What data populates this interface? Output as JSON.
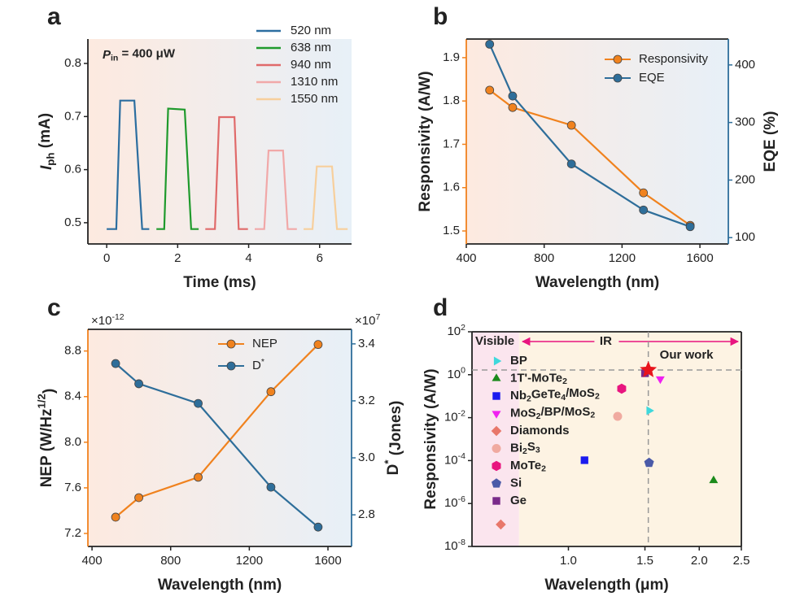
{
  "chart_data": [
    {
      "type": "line",
      "panel_label": "a",
      "annotation": [
        {
          "i": "P"
        },
        {
          "sub": "in"
        },
        " = 400 μW"
      ],
      "xlabel": "Time (ms)",
      "ylabel": [
        {
          "i": "I"
        },
        {
          "sub": "ph"
        },
        " (mA)"
      ],
      "xlim": [
        -0.53,
        6.9
      ],
      "xticks": [
        0,
        2,
        4,
        6
      ],
      "ylim": [
        0.46,
        0.846
      ],
      "yticks": [
        0.5,
        0.6,
        0.7,
        0.8
      ],
      "legend": "upper right",
      "series": [
        {
          "name": "520 nm",
          "color": "#2c6ea0",
          "x": [
            0,
            0.27,
            0.38,
            0.78,
            1.0,
            1.2
          ],
          "values": [
            0.488,
            0.488,
            0.73,
            0.73,
            0.488,
            0.488
          ]
        },
        {
          "name": "638 nm",
          "color": "#1f9a2c",
          "x": [
            1.4,
            1.62,
            1.73,
            2.2,
            2.38,
            2.59
          ],
          "values": [
            0.488,
            0.488,
            0.715,
            0.713,
            0.488,
            0.488
          ]
        },
        {
          "name": "940 nm",
          "color": "#e06a6a",
          "x": [
            2.78,
            3.05,
            3.17,
            3.6,
            3.72,
            3.98
          ],
          "values": [
            0.488,
            0.488,
            0.699,
            0.699,
            0.488,
            0.488
          ]
        },
        {
          "name": "1310 nm",
          "color": "#f1a8a8",
          "x": [
            4.17,
            4.44,
            4.56,
            4.97,
            5.1,
            5.36
          ],
          "values": [
            0.488,
            0.488,
            0.636,
            0.636,
            0.488,
            0.488
          ]
        },
        {
          "name": "1550 nm",
          "color": "#f7cf9c",
          "x": [
            5.55,
            5.8,
            5.92,
            6.35,
            6.49,
            6.79
          ],
          "values": [
            0.488,
            0.488,
            0.606,
            0.606,
            0.488,
            0.488
          ]
        }
      ]
    },
    {
      "type": "line",
      "panel_label": "b",
      "xlabel": "Wavelength (nm)",
      "ylabel": "Responsivity (A/W)",
      "y2label": "EQE (%)",
      "x": [
        520,
        638,
        940,
        1310,
        1550
      ],
      "xlim": [
        400,
        1746
      ],
      "xticks": [
        400,
        800,
        1200,
        1600
      ],
      "ylim": [
        1.47,
        1.943
      ],
      "yticks": [
        1.5,
        1.6,
        1.7,
        1.8,
        1.9
      ],
      "y2lim": [
        89,
        445
      ],
      "y2ticks": [
        100,
        200,
        300,
        400
      ],
      "legend": "upper right",
      "series": [
        {
          "name": "Responsivity",
          "color": "#f0821e",
          "values": [
            1.825,
            1.785,
            1.744,
            1.588,
            1.513
          ]
        },
        {
          "name": "EQE",
          "color": "#2e6e9a",
          "axis": "y2",
          "values": [
            436,
            346,
            228,
            148,
            119
          ]
        }
      ]
    },
    {
      "type": "line",
      "panel_label": "c",
      "xlabel": "Wavelength (nm)",
      "ylabel": [
        "NEP (W/Hz",
        {
          "sup": "1/2"
        },
        ")"
      ],
      "y2label": [
        "D",
        {
          "sup": "*"
        },
        " (Jones)"
      ],
      "y_multiplier": [
        "×10",
        {
          "sup": "-12"
        }
      ],
      "y2_multiplier": [
        "×10",
        {
          "sup": "7"
        }
      ],
      "x": [
        520,
        638,
        940,
        1310,
        1550
      ],
      "xlim": [
        379,
        1720
      ],
      "xticks": [
        400,
        800,
        1200,
        1600
      ],
      "ylim": [
        7.086,
        8.99
      ],
      "yticks": [
        7.2,
        7.6,
        {
          "value": 8,
          "label": "8.0"
        },
        8.4,
        8.8
      ],
      "y2lim": [
        2.689,
        3.451
      ],
      "y2ticks": [
        2.8,
        {
          "value": 3,
          "label": "3.0"
        },
        3.2,
        3.4
      ],
      "legend": "upper center",
      "series": [
        {
          "name": "NEP",
          "color": "#f0821e",
          "values": [
            7.343,
            7.514,
            7.693,
            8.443,
            8.857
          ]
        },
        {
          "name": [
            "D",
            {
              "sup": "*"
            }
          ],
          "color": "#2e6e9a",
          "axis": "y2",
          "values": [
            3.331,
            3.26,
            3.191,
            2.897,
            2.757
          ]
        }
      ]
    },
    {
      "type": "scatter",
      "panel_label": "d",
      "xlabel": "Wavelength (μm)",
      "ylabel": "Responsivity (A/W)",
      "xscale": "log",
      "yscale": "log",
      "xlim": [
        0.6,
        2.5
      ],
      "xticks": [
        {
          "value": 1,
          "label": "1.0"
        },
        1.5,
        {
          "value": 2,
          "label": "2.0"
        },
        2.5
      ],
      "ylim": [
        1e-08,
        100
      ],
      "yticks": [
        {
          "value": 1e-08,
          "label": [
            "10",
            {
              "sup": "-8"
            }
          ]
        },
        {
          "value": 1e-06,
          "label": [
            "10",
            {
              "sup": "-6"
            }
          ]
        },
        {
          "value": 0.0001,
          "label": [
            "10",
            {
              "sup": "-4"
            }
          ]
        },
        {
          "value": 0.01,
          "label": [
            "10",
            {
              "sup": "-2"
            }
          ]
        },
        {
          "value": 1,
          "label": [
            "10",
            {
              "sup": "0"
            }
          ]
        },
        {
          "value": 100,
          "label": [
            "10",
            {
              "sup": "2"
            }
          ]
        }
      ],
      "regions": [
        {
          "label": "Visible",
          "xlim": [
            0.6,
            0.77
          ],
          "color": "#fbe5ee"
        },
        {
          "label": "IR",
          "xlim": [
            0.77,
            2.5
          ],
          "color": "#fdf3e3"
        }
      ],
      "legend": "upper left",
      "series": [
        {
          "name": "BP",
          "color": "#3ed8dc",
          "marker": "tri-right",
          "x": [
            1.533
          ],
          "values": [
            0.0212
          ]
        },
        {
          "name": [
            "1T'-MoTe",
            {
              "sub": "2"
            }
          ],
          "color": "#1b8a1b",
          "marker": "tri-up",
          "x": [
            2.158
          ],
          "values": [
            1.17e-05
          ]
        },
        {
          "name": [
            "Nb",
            {
              "sub": "2"
            },
            "GeTe",
            {
              "sub": "4"
            },
            "/MoS",
            {
              "sub": "2"
            }
          ],
          "color": "#1a1aef",
          "marker": "square",
          "x": [
            1.089
          ],
          "values": [
            0.000104
          ]
        },
        {
          "name": [
            "MoS",
            {
              "sub": "2"
            },
            "/BP/MoS",
            {
              "sub": "2"
            }
          ],
          "color": "#f020f0",
          "marker": "tri-down",
          "x": [
            1.627
          ],
          "values": [
            0.635
          ]
        },
        {
          "name": "Diamonds",
          "color": "#e8776a",
          "marker": "diamond",
          "x": [
            0.699
          ],
          "values": [
            1.05e-07
          ]
        },
        {
          "name": [
            "Bi",
            {
              "sub": "2"
            },
            "S",
            {
              "sub": "3"
            }
          ],
          "color": "#f0aaa0",
          "marker": "circle",
          "x": [
            1.298
          ],
          "values": [
            0.0115
          ]
        },
        {
          "name": [
            "MoTe",
            {
              "sub": "2"
            }
          ],
          "color": "#e8157f",
          "marker": "hexagon",
          "x": [
            1.326
          ],
          "values": [
            0.224
          ]
        },
        {
          "name": "Si",
          "color": "#4a5aa8",
          "marker": "pentagon",
          "x": [
            1.533
          ],
          "values": [
            7.9e-05
          ]
        },
        {
          "name": "Ge",
          "color": "#7a2a8a",
          "marker": "square",
          "x": [
            1.5
          ],
          "values": [
            1.17
          ]
        }
      ],
      "highlight": {
        "label": "Our work",
        "color": "#e8141c",
        "marker": "star",
        "x": [
          1.527
        ],
        "values": [
          1.66
        ]
      }
    }
  ]
}
